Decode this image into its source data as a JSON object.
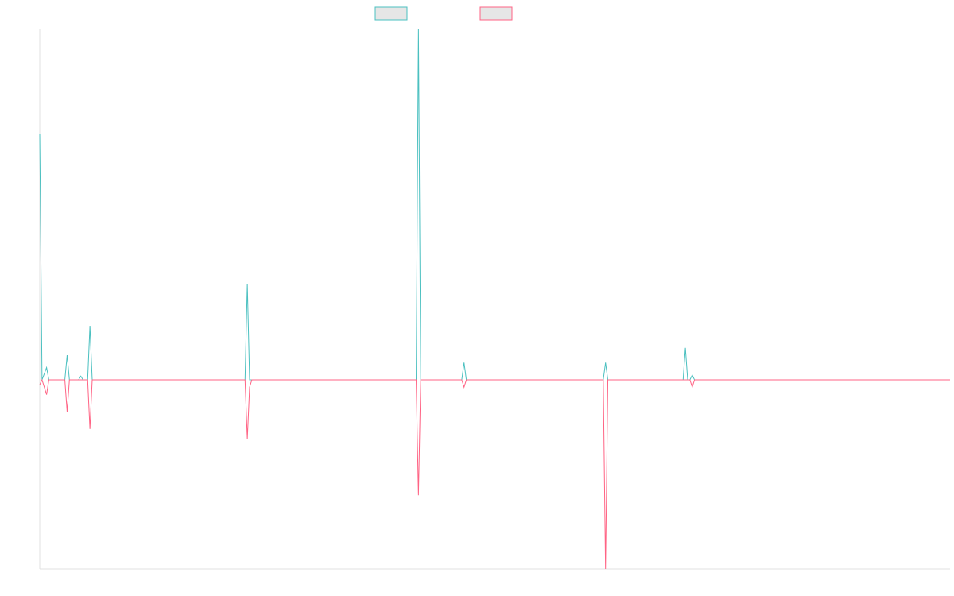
{
  "chart_data": {
    "type": "line",
    "title": "",
    "xlabel": "",
    "ylabel": "",
    "grid": false,
    "legend_position": "top-center",
    "colors": {
      "series_a": "#4bc0c0",
      "series_b": "#ff6384",
      "legend_fill": "#e6e6e6",
      "axis": "#e0e0e0"
    },
    "x": [
      0,
      1,
      2,
      3,
      4,
      5,
      6,
      7,
      8,
      9,
      10,
      11,
      12,
      13,
      14,
      15,
      16,
      17,
      18,
      19,
      20,
      21,
      22,
      23,
      24,
      25,
      26,
      27,
      28,
      29,
      30,
      31,
      32,
      33,
      34,
      35,
      36,
      37,
      38,
      39,
      40,
      41,
      42,
      43,
      44,
      45,
      46,
      47,
      48,
      49,
      50,
      51,
      52,
      53,
      54,
      55,
      56,
      57,
      58,
      59,
      60,
      61,
      62,
      63,
      64,
      65,
      66,
      67,
      68,
      69,
      70,
      71,
      72,
      73,
      74,
      75,
      76,
      77,
      78,
      79,
      80,
      81,
      82,
      83,
      84,
      85,
      86,
      87,
      88,
      89,
      90,
      91,
      92,
      93,
      94,
      95,
      96,
      97,
      98,
      99,
      100,
      101,
      102,
      103,
      104,
      105,
      106,
      107,
      108,
      109,
      110,
      111,
      112,
      113,
      114,
      115,
      116,
      117,
      118,
      119,
      120,
      121,
      122,
      123,
      124,
      125,
      126,
      127,
      128,
      129,
      130,
      131,
      132,
      133,
      134,
      135,
      136,
      137,
      138,
      139,
      140,
      141,
      142,
      143,
      144,
      145,
      146,
      147,
      148,
      149,
      150,
      151,
      152,
      153,
      154,
      155,
      156,
      157,
      158,
      159,
      160,
      161,
      162,
      163,
      164,
      165,
      166,
      167,
      168,
      169,
      170,
      171,
      172,
      173,
      174,
      175,
      176,
      177,
      178,
      179,
      180,
      181,
      182,
      183,
      184,
      185,
      186,
      187,
      188,
      189,
      190,
      191,
      192,
      193,
      194,
      195,
      196,
      197,
      198,
      199,
      200,
      201,
      202,
      203,
      204,
      205,
      206,
      207,
      208,
      209,
      210,
      211,
      212,
      213,
      214,
      215,
      216,
      217,
      218,
      219,
      220,
      221,
      222,
      223,
      224,
      225,
      226,
      227,
      228,
      229,
      230,
      231,
      232,
      233,
      234,
      235,
      236,
      237,
      238,
      239,
      240,
      241,
      242,
      243,
      244,
      245,
      246,
      247,
      248,
      249,
      250,
      251,
      252,
      253,
      254,
      255,
      256,
      257,
      258,
      259,
      260,
      261,
      262,
      263,
      264,
      265,
      266,
      267,
      268,
      269,
      270,
      271,
      272,
      273,
      274,
      275,
      276,
      277,
      278,
      279,
      280,
      281,
      282,
      283,
      284,
      285,
      286,
      287,
      288,
      289,
      290,
      291,
      292,
      293,
      294,
      295,
      296,
      297,
      298,
      299,
      300,
      301,
      302,
      303,
      304,
      305,
      306,
      307,
      308,
      309,
      310,
      311,
      312,
      313,
      314,
      315,
      316,
      317,
      318,
      319,
      320,
      321,
      322,
      323,
      324,
      325,
      326,
      327,
      328,
      329,
      330,
      331,
      332,
      333,
      334,
      335,
      336,
      337,
      338,
      339,
      340,
      341,
      342,
      343,
      344,
      345,
      346,
      347,
      348,
      349,
      350,
      351,
      352,
      353,
      354,
      355,
      356,
      357,
      358,
      359,
      360,
      361,
      362,
      363,
      364,
      365,
      366,
      367,
      368,
      369,
      370,
      371,
      372,
      373,
      374,
      375,
      376,
      377,
      378,
      379,
      380,
      381,
      382,
      383,
      384,
      385,
      386,
      387,
      388,
      389,
      390,
      391,
      392,
      393,
      394,
      395,
      396,
      397,
      398,
      399
    ],
    "series": [
      {
        "points": [
          [
            0,
            100
          ],
          [
            1,
            0
          ],
          [
            3,
            5
          ],
          [
            4,
            0
          ],
          [
            11,
            0
          ],
          [
            12,
            10
          ],
          [
            13,
            0
          ],
          [
            17,
            0
          ],
          [
            18,
            1.5
          ],
          [
            19,
            0
          ],
          [
            21,
            0
          ],
          [
            22,
            22
          ],
          [
            23,
            0
          ],
          [
            90,
            0
          ],
          [
            91,
            39
          ],
          [
            92,
            0
          ],
          [
            165,
            0
          ],
          [
            166,
            143
          ],
          [
            167,
            0
          ],
          [
            185,
            0
          ],
          [
            186,
            7
          ],
          [
            187,
            0
          ],
          [
            247,
            0
          ],
          [
            248,
            7
          ],
          [
            249,
            0
          ],
          [
            282,
            0
          ],
          [
            283,
            13
          ],
          [
            284,
            0
          ],
          [
            285,
            0
          ],
          [
            286,
            2
          ],
          [
            287,
            0
          ],
          [
            399,
            0
          ]
        ]
      },
      {
        "points": [
          [
            0,
            -2
          ],
          [
            1,
            0
          ],
          [
            3,
            -6
          ],
          [
            4,
            0
          ],
          [
            11,
            0
          ],
          [
            12,
            -13
          ],
          [
            13,
            0
          ],
          [
            21,
            0
          ],
          [
            22,
            -20
          ],
          [
            23,
            0
          ],
          [
            90,
            0
          ],
          [
            91,
            -24
          ],
          [
            92,
            -3
          ],
          [
            93,
            0
          ],
          [
            165,
            0
          ],
          [
            166,
            -47
          ],
          [
            167,
            0
          ],
          [
            185,
            0
          ],
          [
            186,
            -3
          ],
          [
            187,
            0
          ],
          [
            247,
            0
          ],
          [
            248,
            -77
          ],
          [
            249,
            0
          ],
          [
            285,
            0
          ],
          [
            286,
            -3
          ],
          [
            287,
            0
          ],
          [
            399,
            0
          ]
        ]
      }
    ],
    "xlim": [
      0,
      399
    ],
    "ylim": [
      -77,
      143
    ]
  }
}
